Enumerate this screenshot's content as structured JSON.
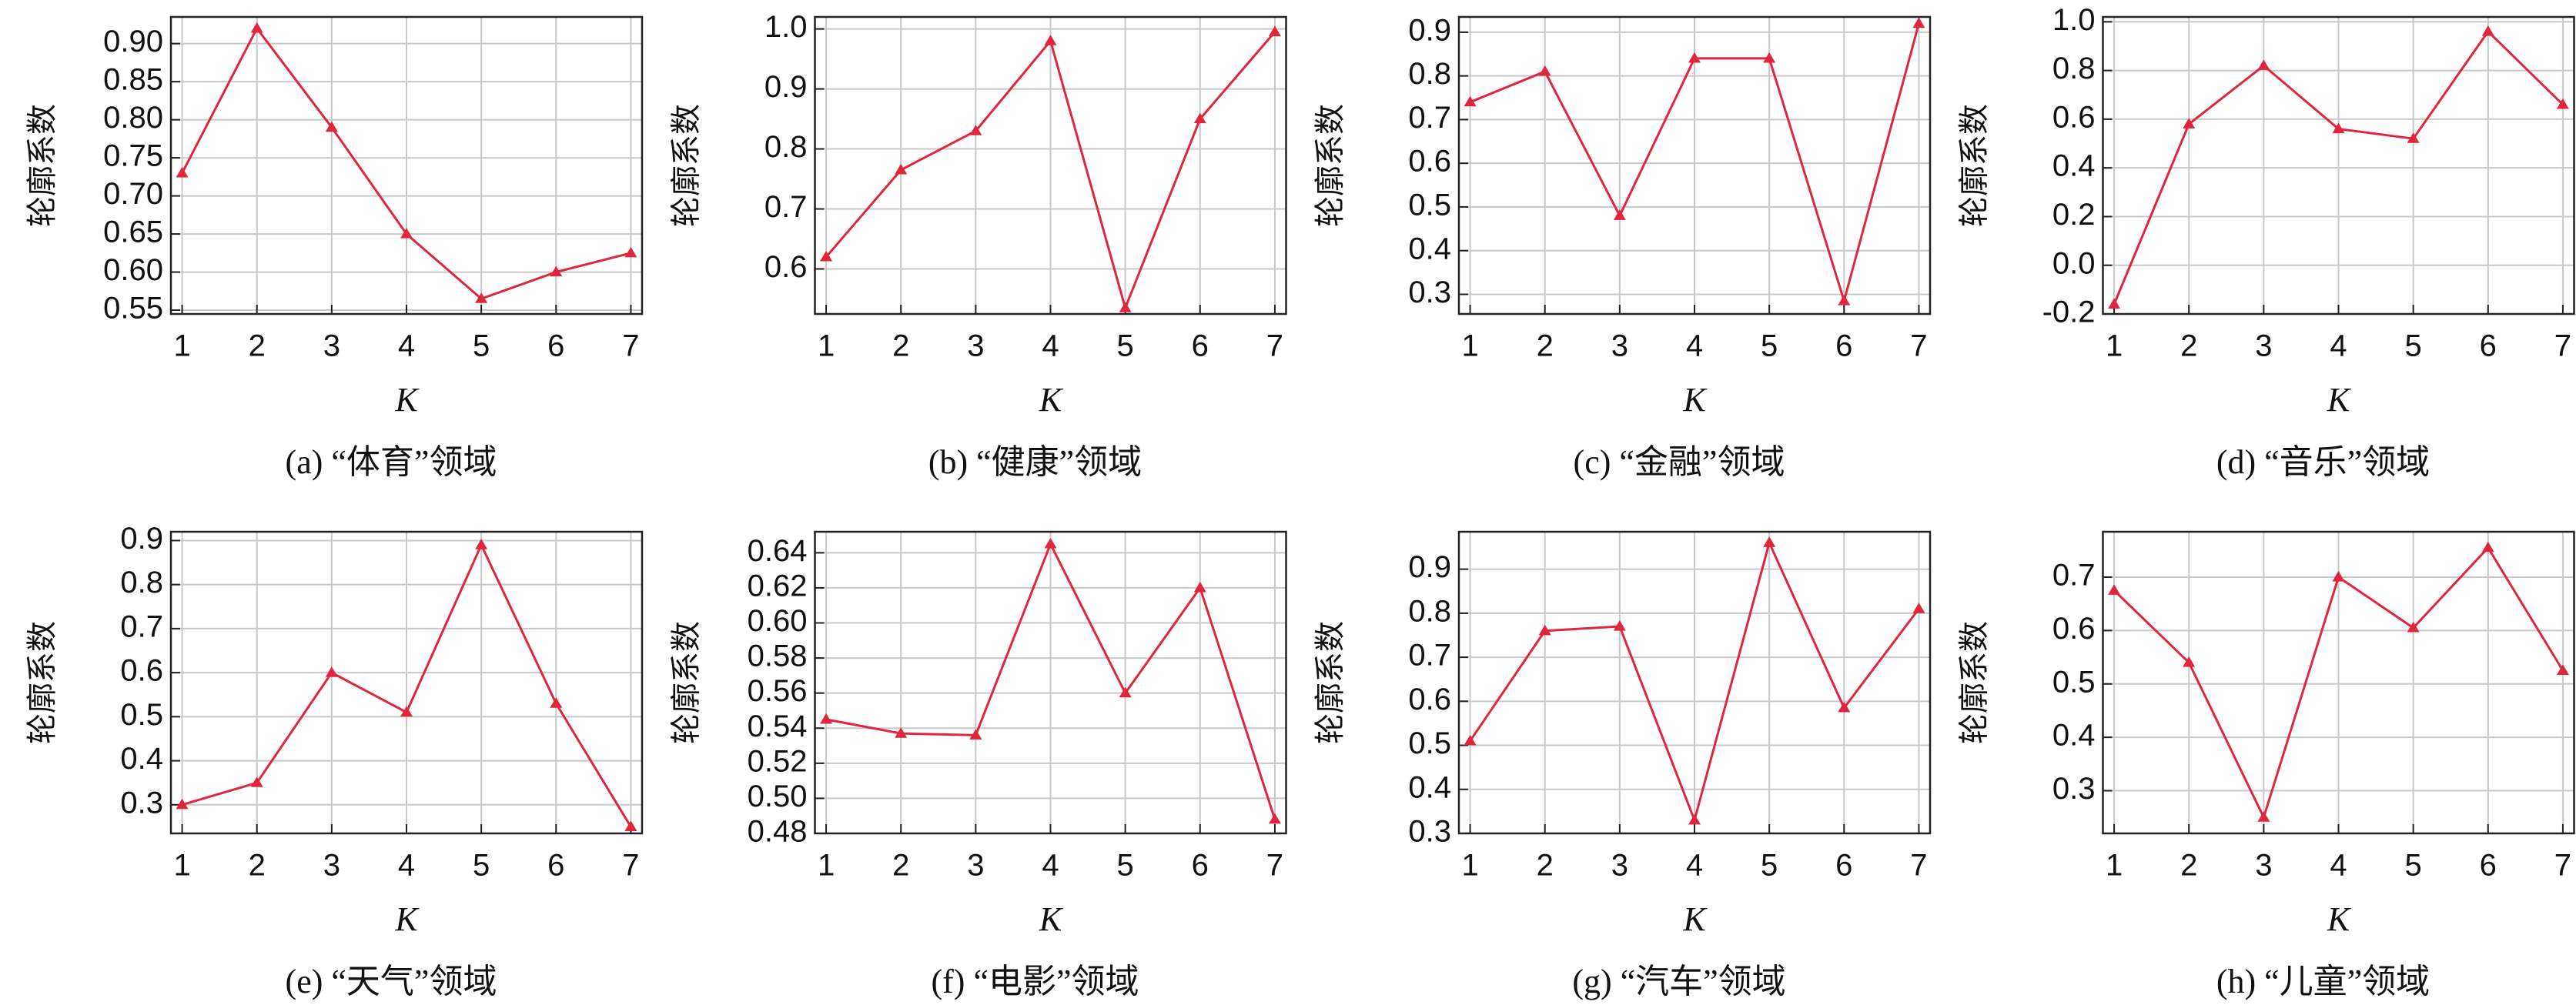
{
  "chart_data": [
    {
      "type": "line",
      "caption": "(a) “体育”领域",
      "xlabel": "K",
      "ylabel": "轮廓系数",
      "color": "#e0263c",
      "grid": true,
      "x": [
        1,
        2,
        3,
        4,
        5,
        6,
        7
      ],
      "values": [
        0.73,
        0.92,
        0.79,
        0.65,
        0.565,
        0.6,
        0.625
      ],
      "xlim": [
        0.85,
        7.15
      ],
      "xticks": [
        1,
        2,
        3,
        4,
        5,
        6,
        7
      ],
      "ylim": [
        0.545,
        0.935
      ],
      "yticks": [
        0.55,
        {
          "value": 0.6,
          "label": "0.60"
        },
        0.65,
        {
          "value": 0.7,
          "label": "0.70"
        },
        0.75,
        {
          "value": 0.8,
          "label": "0.80"
        },
        0.85,
        {
          "value": 0.9,
          "label": "0.90"
        }
      ]
    },
    {
      "type": "line",
      "caption": "(b) “健康”领域",
      "xlabel": "K",
      "ylabel": "轮廓系数",
      "color": "#e0263c",
      "grid": true,
      "x": [
        1,
        2,
        3,
        4,
        5,
        6,
        7
      ],
      "values": [
        0.62,
        0.765,
        0.83,
        0.98,
        0.535,
        0.85,
        0.995
      ],
      "xlim": [
        0.85,
        7.15
      ],
      "xticks": [
        1,
        2,
        3,
        4,
        5,
        6,
        7
      ],
      "ylim": [
        0.525,
        1.02
      ],
      "yticks": [
        0.6,
        0.7,
        0.8,
        0.9,
        {
          "value": 1,
          "label": "1.0"
        }
      ]
    },
    {
      "type": "line",
      "caption": "(c) “金融”领域",
      "xlabel": "K",
      "ylabel": "轮廓系数",
      "color": "#e0263c",
      "grid": true,
      "x": [
        1,
        2,
        3,
        4,
        5,
        6,
        7
      ],
      "values": [
        0.74,
        0.81,
        0.48,
        0.84,
        0.84,
        0.285,
        0.92
      ],
      "xlim": [
        0.85,
        7.15
      ],
      "xticks": [
        1,
        2,
        3,
        4,
        5,
        6,
        7
      ],
      "ylim": [
        0.255,
        0.935
      ],
      "yticks": [
        0.3,
        0.4,
        0.5,
        0.6,
        0.7,
        0.8,
        0.9
      ]
    },
    {
      "type": "line",
      "caption": "(d) “音乐”领域",
      "xlabel": "K",
      "ylabel": "轮廓系数",
      "color": "#e0263c",
      "grid": true,
      "x": [
        1,
        2,
        3,
        4,
        5,
        6,
        7
      ],
      "values": [
        -0.16,
        0.58,
        0.82,
        0.56,
        0.52,
        0.96,
        0.66
      ],
      "xlim": [
        0.85,
        7.15
      ],
      "xticks": [
        1,
        2,
        3,
        4,
        5,
        6,
        7
      ],
      "ylim": [
        -0.2,
        1.02
      ],
      "yticks": [
        -0.2,
        {
          "value": 0,
          "label": "0.0"
        },
        0.2,
        0.4,
        0.6,
        0.8,
        {
          "value": 1,
          "label": "1.0"
        }
      ]
    },
    {
      "type": "line",
      "caption": "(e) “天气”领域",
      "xlabel": "K",
      "ylabel": "轮廓系数",
      "color": "#e0263c",
      "grid": true,
      "x": [
        1,
        2,
        3,
        4,
        5,
        6,
        7
      ],
      "values": [
        0.3,
        0.35,
        0.6,
        0.51,
        0.89,
        0.53,
        0.25
      ],
      "xlim": [
        0.85,
        7.15
      ],
      "xticks": [
        1,
        2,
        3,
        4,
        5,
        6,
        7
      ],
      "ylim": [
        0.235,
        0.92
      ],
      "yticks": [
        0.3,
        0.4,
        0.5,
        0.6,
        0.7,
        0.8,
        0.9
      ]
    },
    {
      "type": "line",
      "caption": "(f) “电影”领域",
      "xlabel": "K",
      "ylabel": "轮廓系数",
      "color": "#e0263c",
      "grid": true,
      "x": [
        1,
        2,
        3,
        4,
        5,
        6,
        7
      ],
      "values": [
        0.545,
        0.537,
        0.536,
        0.645,
        0.56,
        0.62,
        0.488
      ],
      "xlim": [
        0.85,
        7.15
      ],
      "xticks": [
        1,
        2,
        3,
        4,
        5,
        6,
        7
      ],
      "ylim": [
        0.48,
        0.652
      ],
      "yticks": [
        0.48,
        {
          "value": 0.5,
          "label": "0.50"
        },
        0.52,
        0.54,
        0.56,
        0.58,
        {
          "value": 0.6,
          "label": "0.60"
        },
        0.62,
        0.64
      ]
    },
    {
      "type": "line",
      "caption": "(g) “汽车”领域",
      "xlabel": "K",
      "ylabel": "轮廓系数",
      "color": "#e0263c",
      "grid": true,
      "x": [
        1,
        2,
        3,
        4,
        5,
        6,
        7
      ],
      "values": [
        0.51,
        0.76,
        0.77,
        0.33,
        0.96,
        0.585,
        0.81
      ],
      "xlim": [
        0.85,
        7.15
      ],
      "xticks": [
        1,
        2,
        3,
        4,
        5,
        6,
        7
      ],
      "ylim": [
        0.3,
        0.985
      ],
      "yticks": [
        0.3,
        0.4,
        0.5,
        0.6,
        0.7,
        0.8,
        0.9
      ]
    },
    {
      "type": "line",
      "caption": "(h) “儿童”领域",
      "xlabel": "K",
      "ylabel": "轮廓系数",
      "color": "#e0263c",
      "grid": true,
      "x": [
        1,
        2,
        3,
        4,
        5,
        6,
        7
      ],
      "values": [
        0.675,
        0.54,
        0.25,
        0.7,
        0.605,
        0.755,
        0.525
      ],
      "xlim": [
        0.85,
        7.15
      ],
      "xticks": [
        1,
        2,
        3,
        4,
        5,
        6,
        7
      ],
      "ylim": [
        0.22,
        0.785
      ],
      "yticks": [
        0.3,
        0.4,
        0.5,
        0.6,
        0.7
      ]
    }
  ]
}
